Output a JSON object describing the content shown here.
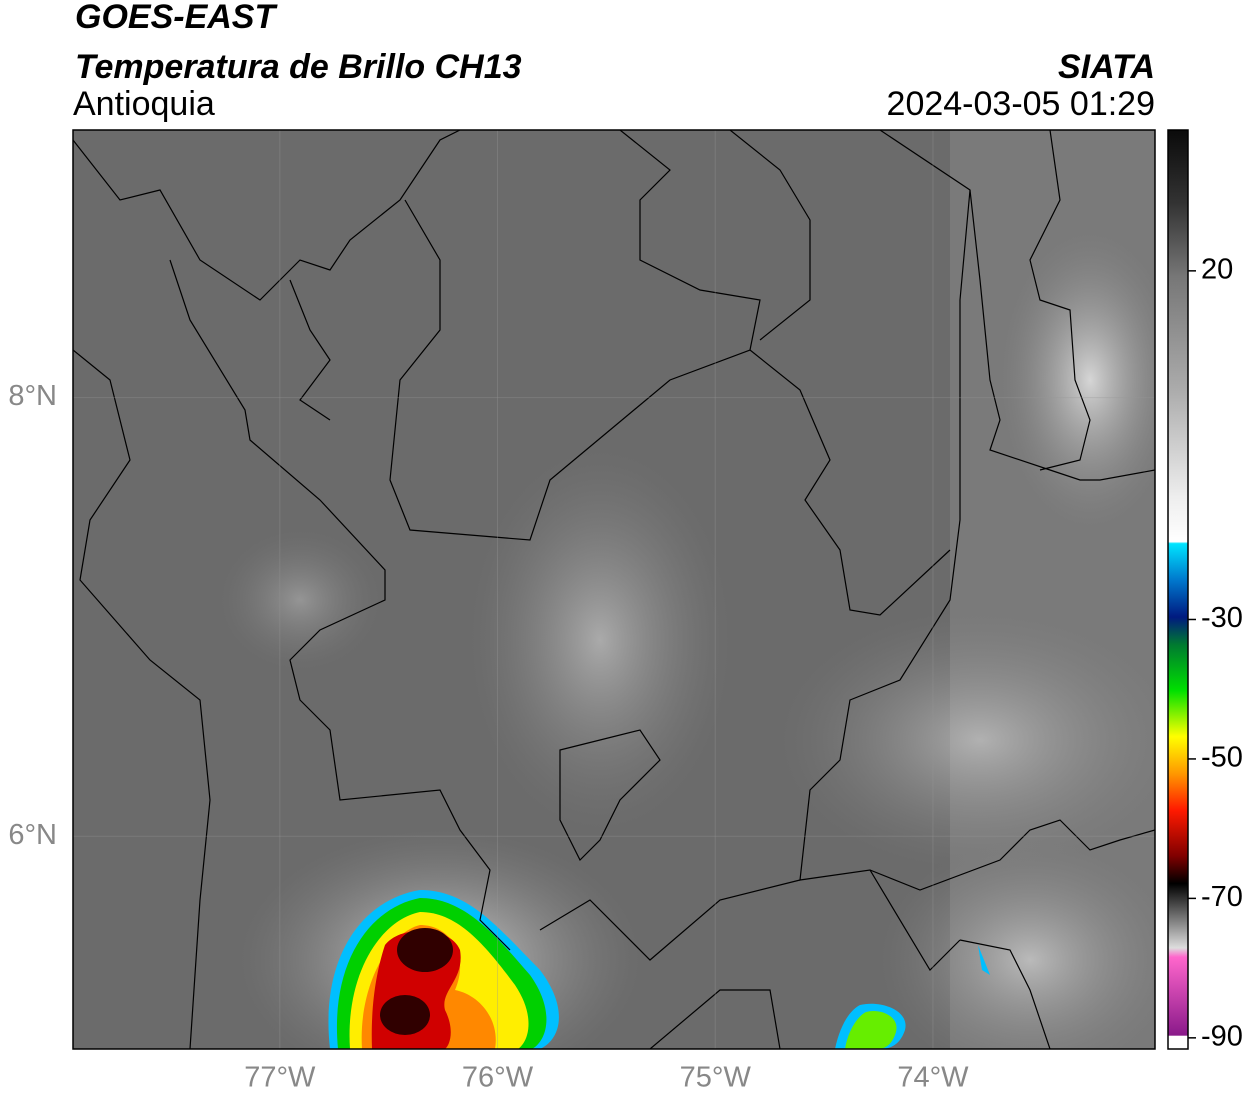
{
  "header": {
    "title": "GOES-EAST",
    "subtitle": "Temperatura de Brillo CH13",
    "region": "Antioquia",
    "source": "SIATA",
    "datetime": "2024-03-05 01:29"
  },
  "map": {
    "xlim": [
      -77.95,
      -72.98
    ],
    "ylim": [
      5.03,
      9.22
    ],
    "xticks": [
      {
        "value": -77,
        "label": "77°W"
      },
      {
        "value": -76,
        "label": "76°W"
      },
      {
        "value": -75,
        "label": "75°W"
      },
      {
        "value": -74,
        "label": "74°W"
      }
    ],
    "yticks": [
      {
        "value": 8,
        "label": "8°N"
      },
      {
        "value": 6,
        "label": "6°N"
      }
    ],
    "grid": true
  },
  "colorbar": {
    "clim": [
      40.2,
      -91.6
    ],
    "ticks": [
      20,
      -30,
      -50,
      -70,
      -90
    ]
  }
}
